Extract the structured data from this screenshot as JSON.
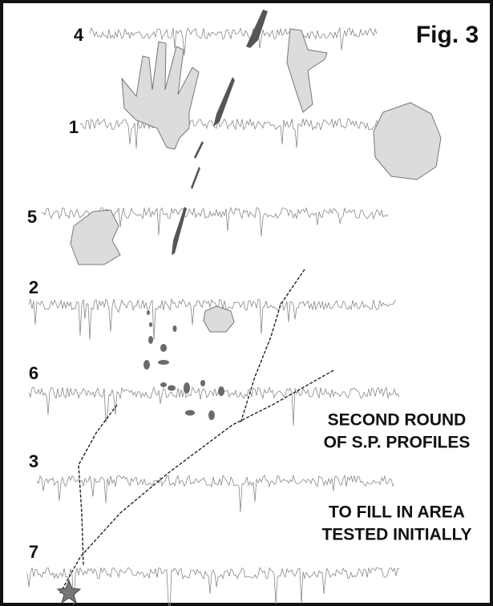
{
  "figure": {
    "title": "Fig. 3",
    "profiles": [
      {
        "label": "4"
      },
      {
        "label": "1"
      },
      {
        "label": "5"
      },
      {
        "label": "2"
      },
      {
        "label": "6"
      },
      {
        "label": "3"
      },
      {
        "label": "7"
      }
    ],
    "notes": [
      "SECOND ROUND",
      "OF S.P. PROFILES",
      "TO FILL IN AREA",
      "TESTED INITIALLY"
    ]
  }
}
